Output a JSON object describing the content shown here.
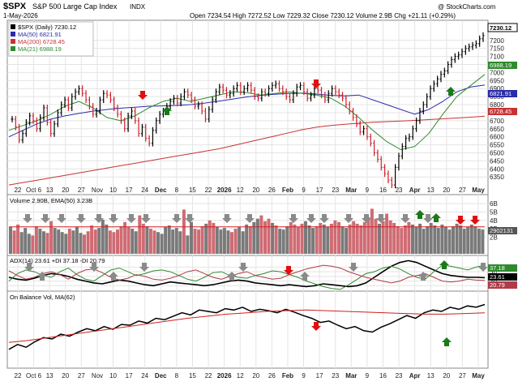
{
  "header": {
    "symbol": "$SPX",
    "name": "S&P 500 Large Cap Index",
    "exchange": "INDX",
    "date": "1-May-2026",
    "ohlc": "Open 7234.54  High 7272.52  Low 7229.32  Close 7230.12  Volume 2.9B  Chg +21.11 (+0.29%)",
    "watermark": "@ StockCharts.com"
  },
  "chart_data": [
    {
      "type": "line",
      "panel": "price",
      "title": "$SPX (Daily) 7230.12",
      "legend": [
        "$SPX (Daily) 7230.12",
        "MA(50) 6821.91",
        "MA(200) 6728.45",
        "MA(21) 6988.19"
      ],
      "ylim": [
        6250,
        7300
      ],
      "y_ticks": [
        6350,
        6400,
        6450,
        6500,
        6550,
        6600,
        6650,
        6700,
        6750,
        6800,
        6850,
        6900,
        6950,
        7000,
        7050,
        7100,
        7150,
        7200
      ],
      "last_labels": [
        "7230.12",
        "6988.19",
        "6821.91",
        "6728.45"
      ],
      "close": [
        6710,
        6660,
        6580,
        6620,
        6690,
        6730,
        6700,
        6650,
        6720,
        6780,
        6690,
        6620,
        6680,
        6750,
        6800,
        6830,
        6780,
        6850,
        6880,
        6900,
        6870,
        6830,
        6790,
        6740,
        6760,
        6830,
        6870,
        6860,
        6830,
        6780,
        6740,
        6700,
        6650,
        6730,
        6760,
        6700,
        6620,
        6660,
        6590,
        6560,
        6640,
        6700,
        6740,
        6760,
        6790,
        6820,
        6840,
        6810,
        6850,
        6880,
        6860,
        6830,
        6790,
        6800,
        6760,
        6710,
        6770,
        6830,
        6880,
        6910,
        6890,
        6860,
        6870,
        6900,
        6920,
        6880,
        6900,
        6920,
        6890,
        6850,
        6840,
        6880,
        6870,
        6900,
        6920,
        6930,
        6900,
        6880,
        6850,
        6830,
        6870,
        6910,
        6920,
        6880,
        6840,
        6860,
        6900,
        6890,
        6860,
        6830,
        6870,
        6900,
        6880,
        6860,
        6840,
        6800,
        6760,
        6720,
        6680,
        6630,
        6650,
        6600,
        6560,
        6500,
        6460,
        6410,
        6370,
        6330,
        6300,
        6410,
        6480,
        6540,
        6590,
        6600,
        6650,
        6700,
        6760,
        6800,
        6850,
        6900,
        6930,
        6960,
        6990,
        7010,
        7050,
        7080,
        7100,
        7110,
        7130,
        7150,
        7160,
        7170,
        7180,
        7210,
        7230
      ],
      "series": [
        {
          "name": "MA(50)",
          "color": "#2b2bab",
          "values": [
            6600,
            6640,
            6680,
            6710,
            6730,
            6745,
            6760,
            6770,
            6778,
            6784,
            6790,
            6792,
            6795,
            6800,
            6810,
            6822,
            6835,
            6848,
            6858,
            6865,
            6870,
            6872,
            6866,
            6858,
            6855,
            6860,
            6830,
            6800,
            6770,
            6740,
            6770,
            6820,
            6880,
            6910,
            6922
          ]
        },
        {
          "name": "MA(200)",
          "color": "#c83232",
          "values": [
            6300,
            6315,
            6330,
            6345,
            6360,
            6375,
            6390,
            6405,
            6420,
            6435,
            6450,
            6465,
            6480,
            6495,
            6510,
            6525,
            6545,
            6565,
            6585,
            6605,
            6625,
            6645,
            6660,
            6670,
            6678,
            6684,
            6690,
            6694,
            6698,
            6702,
            6707,
            6712,
            6717,
            6722,
            6728
          ]
        },
        {
          "name": "MA(21)",
          "color": "#2f8a2f",
          "values": [
            6640,
            6670,
            6700,
            6740,
            6790,
            6820,
            6780,
            6720,
            6700,
            6730,
            6780,
            6820,
            6840,
            6820,
            6840,
            6860,
            6880,
            6875,
            6860,
            6870,
            6880,
            6870,
            6860,
            6840,
            6790,
            6720,
            6640,
            6570,
            6520,
            6540,
            6620,
            6740,
            6850,
            6920,
            6988
          ]
        }
      ]
    },
    {
      "type": "bar",
      "panel": "volume",
      "title": "Volume 2.90B, EMA(50) 3.23B",
      "y_ticks": [
        "6B",
        "5B",
        "4B",
        "3B",
        "2B"
      ],
      "last_label": "2902131",
      "values": [
        3.2,
        2.8,
        3.5,
        2.6,
        3.1,
        2.4,
        2.2,
        3.3,
        3.0,
        2.7,
        2.5,
        3.9,
        3.1,
        2.9,
        2.6,
        2.4,
        3.0,
        2.8,
        3.2,
        2.5,
        2.3,
        2.7,
        3.4,
        2.9,
        3.1,
        4.1,
        3.5,
        2.8,
        2.6,
        2.9,
        3.3,
        3.8,
        3.2,
        3.0,
        2.7,
        4.6,
        3.6,
        3.3,
        3.0,
        2.8,
        2.6,
        2.4,
        3.2,
        3.4,
        2.9,
        3.1,
        2.7,
        5.3,
        2.2,
        3.8,
        3.0,
        2.9,
        3.3,
        3.6,
        4.0,
        3.7,
        3.2,
        2.9,
        3.1,
        2.8,
        2.6,
        3.0,
        3.2,
        2.7,
        3.5,
        3.3,
        3.8,
        4.2,
        4.6,
        3.9,
        4.2,
        3.7,
        3.4,
        3.0,
        2.9,
        3.3,
        3.8,
        3.5,
        3.2,
        3.6,
        3.9,
        3.4,
        3.1,
        3.3,
        3.7,
        3.5,
        3.2,
        3.6,
        4.0,
        3.8,
        3.3,
        3.1,
        3.5,
        3.9,
        3.6,
        3.4,
        3.8,
        4.4,
        5.4,
        4.2,
        3.6,
        3.9,
        4.8,
        4.0,
        3.7,
        3.3,
        3.1,
        3.4,
        3.8,
        3.5,
        3.2,
        3.6,
        3.0,
        3.3,
        3.7,
        3.4,
        3.1,
        3.5,
        3.2,
        2.9,
        3.3,
        3.6,
        3.4,
        3.0,
        3.2,
        3.5,
        3.3,
        3.0,
        2.9
      ],
      "ema": 3.23
    },
    {
      "type": "line",
      "panel": "adx",
      "title": "ADX(14) 23.61 +DI 37.18 -DI 20.79",
      "ylim": [
        10,
        45
      ],
      "y_ticks": [
        15,
        20,
        25,
        30,
        35
      ],
      "last_labels": [
        "37.18",
        "23.61",
        "20.79"
      ],
      "series": [
        {
          "name": "ADX(14)",
          "color": "#000000",
          "values": [
            24,
            22,
            21,
            23,
            26,
            28,
            27,
            25,
            22,
            20,
            18,
            17,
            19,
            21,
            20,
            18,
            16,
            15,
            17,
            19,
            18,
            17,
            16,
            15,
            16,
            18,
            20,
            21,
            20,
            18,
            17,
            16,
            15,
            16,
            15,
            14,
            15,
            17,
            16,
            15,
            14,
            15,
            18,
            24,
            30,
            36,
            40,
            42,
            40,
            36,
            32,
            28,
            26,
            25,
            24,
            24,
            23.61
          ]
        },
        {
          "name": "+DI",
          "color": "#2f8a2f",
          "values": [
            20,
            28,
            32,
            30,
            26,
            24,
            30,
            34,
            27,
            22,
            20,
            26,
            32,
            34,
            30,
            26,
            28,
            31,
            32,
            30,
            26,
            22,
            20,
            24,
            29,
            30,
            26,
            24,
            23,
            26,
            28,
            31,
            30,
            27,
            24,
            20,
            17,
            14,
            12,
            11,
            16,
            22,
            28,
            30,
            34,
            36,
            33,
            28,
            24,
            22,
            30,
            37,
            36,
            34,
            32,
            35,
            37.18
          ]
        },
        {
          "name": "-DI",
          "color": "#b03a48",
          "values": [
            31,
            26,
            22,
            24,
            28,
            30,
            27,
            22,
            28,
            32,
            33,
            29,
            24,
            21,
            23,
            27,
            25,
            22,
            21,
            23,
            26,
            30,
            32,
            28,
            24,
            22,
            25,
            28,
            30,
            26,
            24,
            22,
            23,
            27,
            30,
            33,
            35,
            37,
            36,
            34,
            30,
            27,
            24,
            22,
            20,
            18,
            20,
            24,
            26,
            28,
            24,
            20,
            19,
            20,
            22,
            21,
            20.79
          ]
        }
      ]
    },
    {
      "type": "line",
      "panel": "obv",
      "title": "On Balance Vol, MA(62)",
      "series": [
        {
          "name": "On Balance Vol",
          "color": "#000000",
          "values": [
            0.25,
            0.32,
            0.28,
            0.36,
            0.42,
            0.4,
            0.47,
            0.44,
            0.5,
            0.55,
            0.52,
            0.58,
            0.54,
            0.61,
            0.6,
            0.66,
            0.63,
            0.7,
            0.68,
            0.73,
            0.78,
            0.75,
            0.82,
            0.8,
            0.78,
            0.84,
            0.82,
            0.86,
            0.8,
            0.83,
            0.81,
            0.78,
            0.83,
            0.79,
            0.74,
            0.7,
            0.64,
            0.66,
            0.6,
            0.55,
            0.58,
            0.52,
            0.5,
            0.57,
            0.62,
            0.68,
            0.74,
            0.7,
            0.78,
            0.82,
            0.8,
            0.86,
            0.83,
            0.88,
            0.86,
            0.9
          ]
        },
        {
          "name": "MA(62)",
          "color": "#d02020",
          "values": [
            0.35,
            0.38,
            0.42,
            0.46,
            0.5,
            0.54,
            0.58,
            0.62,
            0.66,
            0.7,
            0.73,
            0.76,
            0.78,
            0.8,
            0.81,
            0.82,
            0.81,
            0.8,
            0.79,
            0.78,
            0.77,
            0.76,
            0.76,
            0.77,
            0.78
          ]
        }
      ]
    }
  ],
  "axis": {
    "x_ticks": [
      "22",
      "Oct 6",
      "13",
      "20",
      "27",
      "Nov",
      "10",
      "17",
      "24",
      "Dec",
      "8",
      "15",
      "22",
      "2026",
      "12",
      "20",
      "26",
      "Feb",
      "9",
      "17",
      "23",
      "Mar",
      "9",
      "16",
      "23",
      "Apr",
      "13",
      "20",
      "27",
      "May"
    ]
  }
}
